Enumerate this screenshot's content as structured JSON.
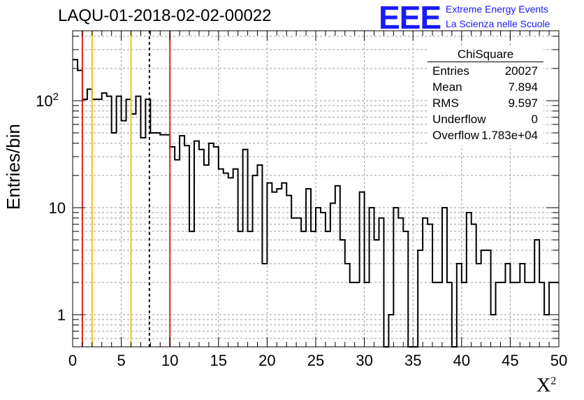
{
  "header": {
    "title": "LAQU-01-2018-02-02-00022",
    "logo_mark": "EEE",
    "logo_line1": "Extreme Energy Events",
    "logo_line2": "La Scienza nelle Scuole"
  },
  "stats_box": {
    "title": "ChiSquare",
    "rows": [
      {
        "label": "Entries",
        "value": "20027"
      },
      {
        "label": "Mean",
        "value": "7.894"
      },
      {
        "label": "RMS",
        "value": "9.597"
      },
      {
        "label": "Underflow",
        "value": "0"
      },
      {
        "label": "Overflow",
        "value": "1.783e+04"
      }
    ]
  },
  "chart_data": {
    "type": "histogram",
    "title": "LAQU-01-2018-02-02-00022",
    "xlabel": "X²",
    "ylabel": "Entries/bin",
    "xlim": [
      0,
      50
    ],
    "ylim": [
      0.5,
      450
    ],
    "log_y": true,
    "grid": true,
    "x_ticks": [
      "0",
      "5",
      "10",
      "15",
      "20",
      "25",
      "30",
      "35",
      "40",
      "45",
      "50"
    ],
    "y_ticks": [
      {
        "value": 1,
        "label": "1"
      },
      {
        "value": 10,
        "label": "10"
      },
      {
        "value": 100,
        "label": "10²"
      }
    ],
    "bin_width": 0.5,
    "bins_x_start": 0,
    "values": [
      242,
      192,
      103,
      128,
      103,
      103,
      118,
      110,
      50,
      110,
      65,
      103,
      75,
      110,
      45,
      103,
      50,
      50,
      48,
      48,
      37,
      28,
      47,
      38,
      6,
      42,
      35,
      25,
      40,
      37,
      23,
      21,
      19,
      23,
      6,
      35,
      6,
      20,
      25,
      3,
      17,
      14,
      15,
      17,
      13,
      8,
      8,
      6,
      15,
      6,
      10,
      9,
      6,
      11,
      16,
      5,
      3,
      2,
      2,
      14,
      2,
      10,
      5,
      8,
      0,
      1,
      10,
      8,
      6,
      0,
      0,
      4,
      8,
      7,
      2,
      2,
      10,
      2,
      0,
      3,
      2,
      9,
      7,
      3,
      4,
      4,
      1,
      2,
      2,
      3,
      2,
      2,
      3,
      2,
      2,
      5,
      2,
      1,
      2,
      2
    ],
    "vertical_lines": [
      {
        "x": 1,
        "color": "#e8201e",
        "style": "solid"
      },
      {
        "x": 2,
        "color": "#f5c518",
        "style": "solid"
      },
      {
        "x": 6,
        "color": "#f5c518",
        "style": "solid"
      },
      {
        "x": 7.894,
        "color": "#000000",
        "style": "dashed"
      },
      {
        "x": 10,
        "color": "#e8201e",
        "style": "solid"
      }
    ]
  }
}
